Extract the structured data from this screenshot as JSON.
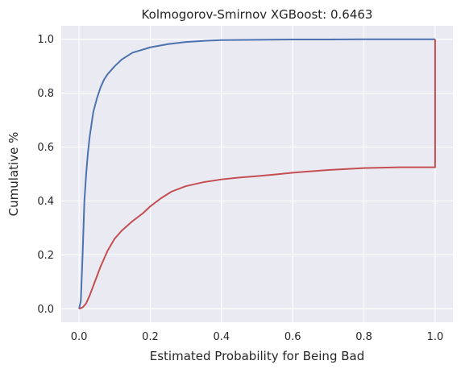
{
  "chart_data": {
    "type": "line",
    "title": "Kolmogorov-Smirnov XGBoost:  0.6463",
    "xlabel": "Estimated Probability for Being Bad",
    "ylabel": "Cumulative %",
    "xlim": [
      -0.05,
      1.05
    ],
    "ylim": [
      -0.05,
      1.05
    ],
    "xticks": [
      0.0,
      0.2,
      0.4,
      0.6,
      0.8,
      1.0
    ],
    "xtick_labels": [
      "0.0",
      "0.2",
      "0.4",
      "0.6",
      "0.8",
      "1.0"
    ],
    "yticks": [
      0.0,
      0.2,
      0.4,
      0.6,
      0.8,
      1.0
    ],
    "ytick_labels": [
      "0.0",
      "0.2",
      "0.4",
      "0.6",
      "0.8",
      "1.0"
    ],
    "grid": true,
    "background": "#eaeaf2",
    "grid_color": "#ffffff",
    "series": [
      {
        "color": "#4c72b0",
        "x": [
          0.0,
          0.005,
          0.01,
          0.015,
          0.02,
          0.025,
          0.03,
          0.04,
          0.05,
          0.06,
          0.07,
          0.08,
          0.1,
          0.12,
          0.15,
          0.2,
          0.25,
          0.3,
          0.35,
          0.4,
          0.5,
          0.6,
          0.7,
          0.8,
          0.9,
          1.0,
          1.0
        ],
        "y": [
          0.0,
          0.03,
          0.2,
          0.4,
          0.5,
          0.58,
          0.64,
          0.73,
          0.78,
          0.82,
          0.85,
          0.87,
          0.9,
          0.925,
          0.95,
          0.97,
          0.982,
          0.99,
          0.994,
          0.997,
          0.998,
          0.999,
          0.999,
          1.0,
          1.0,
          1.0,
          1.0
        ]
      },
      {
        "color": "#c44e52",
        "x": [
          0.0,
          0.01,
          0.02,
          0.03,
          0.04,
          0.05,
          0.06,
          0.08,
          0.1,
          0.12,
          0.15,
          0.18,
          0.2,
          0.23,
          0.26,
          0.3,
          0.35,
          0.4,
          0.45,
          0.5,
          0.55,
          0.6,
          0.7,
          0.8,
          0.9,
          1.0,
          1.0
        ],
        "y": [
          0.0,
          0.005,
          0.02,
          0.05,
          0.085,
          0.12,
          0.155,
          0.215,
          0.26,
          0.29,
          0.325,
          0.355,
          0.38,
          0.41,
          0.435,
          0.455,
          0.47,
          0.48,
          0.487,
          0.492,
          0.498,
          0.505,
          0.515,
          0.522,
          0.525,
          0.525,
          1.0
        ]
      }
    ]
  }
}
